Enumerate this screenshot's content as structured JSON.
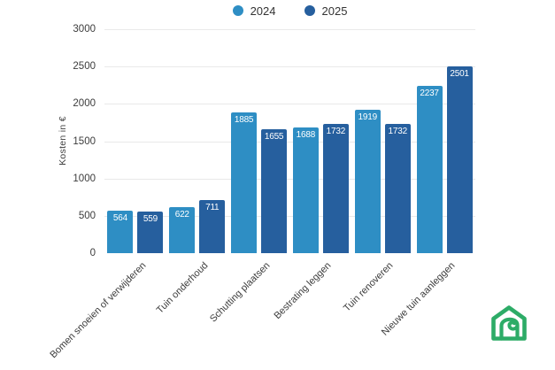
{
  "chart_data": {
    "type": "bar",
    "title": "",
    "categories": [
      "Bomen snoeien of verwijderen",
      "Tuin onderhoud",
      "Schutting plaatsen",
      "Bestrating leggen",
      "Tuin renoveren",
      "Nieuwe tuin aanleggen"
    ],
    "series": [
      {
        "name": "2024",
        "color": "#2E8EC4",
        "values": [
          564,
          622,
          1885,
          1688,
          1919,
          2237
        ]
      },
      {
        "name": "2025",
        "color": "#265F9E",
        "values": [
          559,
          711,
          1655,
          1732,
          1732,
          2501
        ]
      }
    ],
    "xlabel": "",
    "ylabel": "Kosten in €",
    "ylim": [
      0,
      3000
    ],
    "yticks": [
      0,
      500,
      1000,
      1500,
      2000,
      2500,
      3000
    ],
    "grid": "horizontal",
    "legend_position": "top-center",
    "value_labels": "inside-top-white"
  },
  "styles": {
    "grid_color": "#e9e9e9",
    "axis_text_color": "#3c3c3c",
    "value_label_color": "#ffffff",
    "legend_text_color": "#333333",
    "background": "#ffffff"
  },
  "branding": {
    "logo_icon": "house-with-curl-icon",
    "logo_color": "#2DAC67"
  }
}
